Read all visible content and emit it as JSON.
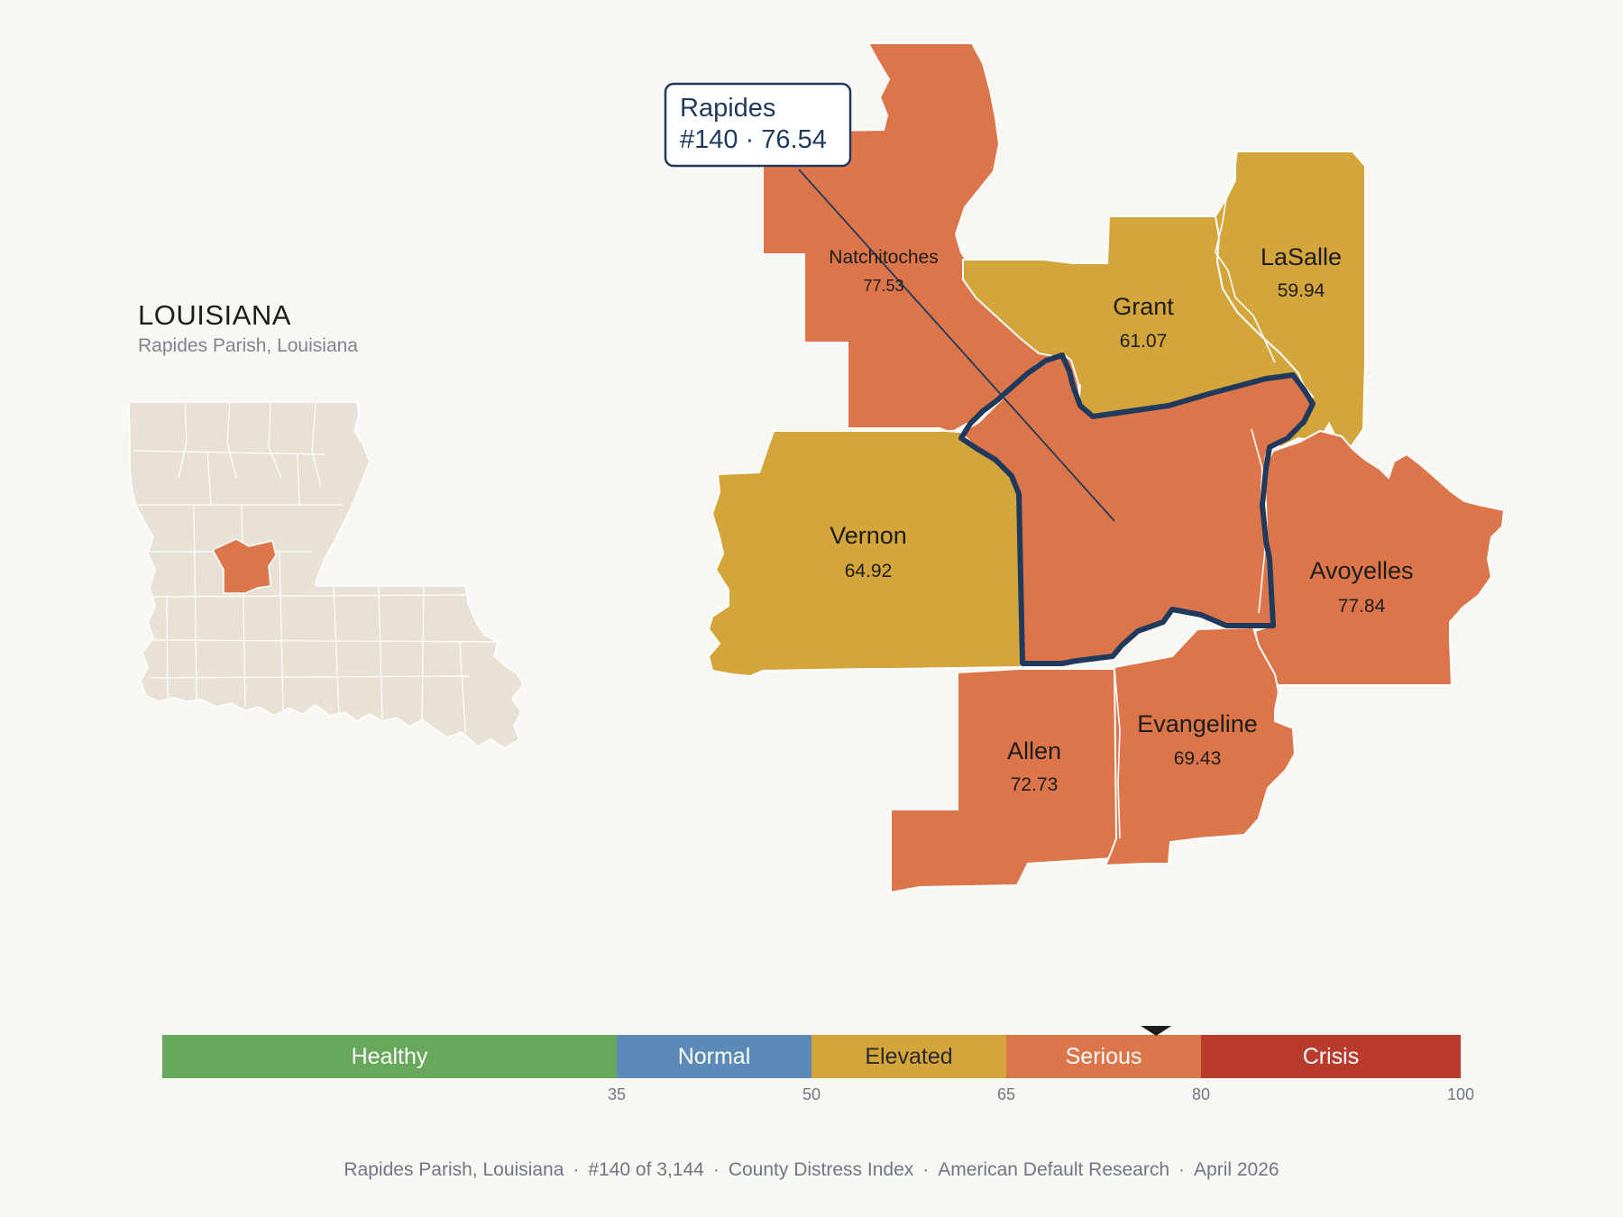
{
  "state": {
    "title": "LOUISIANA",
    "subtitle": "Rapides Parish, Louisiana"
  },
  "colors": {
    "background": "#f9f7f4",
    "serious": "#dc764a",
    "elevated": "#d3a53b",
    "inset_land": "#e8e2d6",
    "highlight_outline": "#1f3a5c"
  },
  "callout": {
    "name": "Rapides",
    "detail": "#140 · 76.54"
  },
  "parishes": [
    {
      "name": "Natchitoches",
      "value": "77.53",
      "status": "serious"
    },
    {
      "name": "Grant",
      "value": "61.07",
      "status": "elevated"
    },
    {
      "name": "LaSalle",
      "value": "59.94",
      "status": "elevated"
    },
    {
      "name": "Vernon",
      "value": "64.92",
      "status": "elevated"
    },
    {
      "name": "Avoyelles",
      "value": "77.84",
      "status": "serious"
    },
    {
      "name": "Allen",
      "value": "72.73",
      "status": "serious"
    },
    {
      "name": "Evangeline",
      "value": "69.43",
      "status": "serious"
    }
  ],
  "legend": {
    "segments": [
      {
        "label": "Healthy",
        "from": 0,
        "to": 35,
        "color": "#68a85a",
        "text_color": "#ffffff"
      },
      {
        "label": "Normal",
        "from": 35,
        "to": 50,
        "color": "#5b8ab8",
        "text_color": "#ffffff"
      },
      {
        "label": "Elevated",
        "from": 50,
        "to": 65,
        "color": "#d3a53b",
        "text_color": "#2a2a2a"
      },
      {
        "label": "Serious",
        "from": 65,
        "to": 80,
        "color": "#dc764a",
        "text_color": "#ffffff"
      },
      {
        "label": "Crisis",
        "from": 80,
        "to": 100,
        "color": "#b83b2c",
        "text_color": "#ffffff"
      }
    ],
    "ticks": [
      "35",
      "50",
      "65",
      "80",
      "100"
    ],
    "marker_value": 76.54
  },
  "footer": {
    "parish": "Rapides Parish, Louisiana",
    "rank": "#140 of 3,144",
    "index": "County Distress Index",
    "source": "American Default Research",
    "date": "April 2026"
  }
}
